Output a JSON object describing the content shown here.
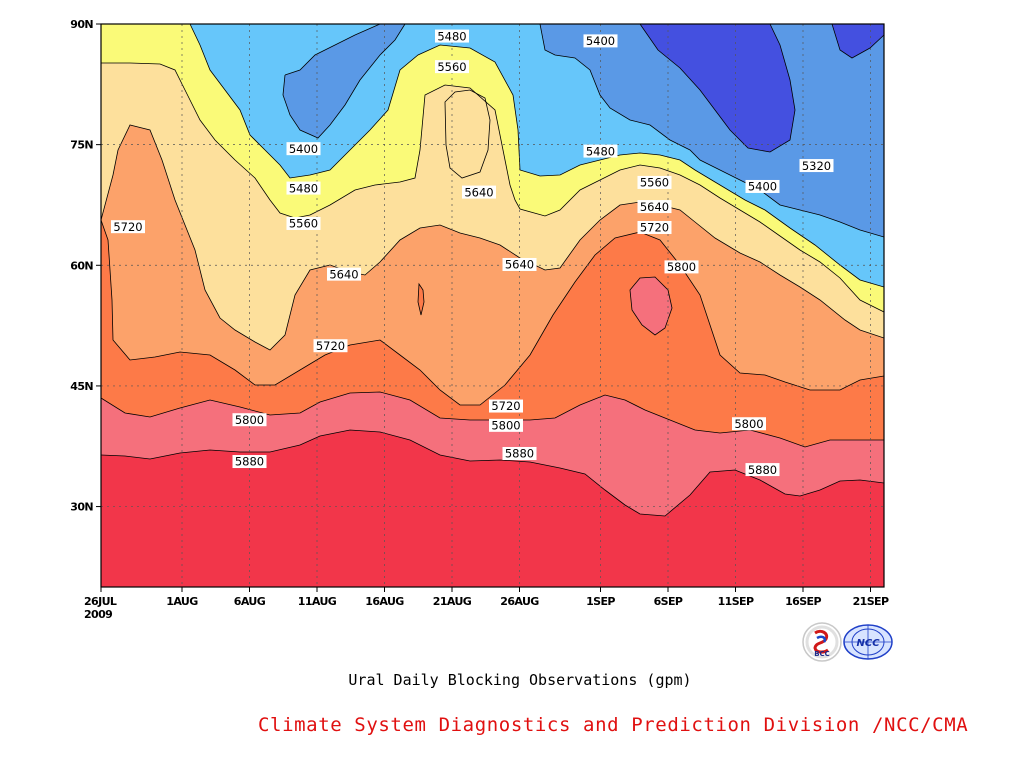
{
  "chart_data": {
    "type": "contour",
    "title": "Ural Daily Blocking Observations (gpm)",
    "x_ticks": [
      "26JUL 2009",
      "1AUG",
      "6AUG",
      "11AUG",
      "16AUG",
      "21AUG",
      "26AUG",
      "1SEP",
      "6SEP",
      "11SEP",
      "16SEP",
      "21SEP"
    ],
    "x_range": [
      "2009-07-26",
      "2009-09-22"
    ],
    "y_ticks": [
      "30N",
      "45N",
      "60N",
      "75N",
      "90N"
    ],
    "y_range": [
      20,
      90
    ],
    "grid": "dotted",
    "contour_levels": [
      5320,
      5400,
      5480,
      5560,
      5640,
      5720,
      5800,
      5880
    ],
    "contour_labels": [
      {
        "value": "5480",
        "date": "2009-08-21",
        "lat": 88.5
      },
      {
        "value": "5560",
        "date": "2009-08-21",
        "lat": 84.7
      },
      {
        "value": "5400",
        "date": "2009-09-01",
        "lat": 87.9
      },
      {
        "value": "5400",
        "date": "2009-08-10",
        "lat": 74.5
      },
      {
        "value": "5480",
        "date": "2009-08-10",
        "lat": 69.6
      },
      {
        "value": "5560",
        "date": "2009-08-10",
        "lat": 65.2
      },
      {
        "value": "5640",
        "date": "2009-08-23",
        "lat": 69.1
      },
      {
        "value": "5480",
        "date": "2009-09-01",
        "lat": 74.2
      },
      {
        "value": "5320",
        "date": "2009-09-17",
        "lat": 72.4
      },
      {
        "value": "5400",
        "date": "2009-09-13",
        "lat": 69.8
      },
      {
        "value": "5560",
        "date": "2009-09-05",
        "lat": 70.3
      },
      {
        "value": "5640",
        "date": "2009-09-05",
        "lat": 67.3
      },
      {
        "value": "5720",
        "date": "2009-09-05",
        "lat": 64.7
      },
      {
        "value": "5800",
        "date": "2009-09-07",
        "lat": 59.8
      },
      {
        "value": "5720",
        "date": "2009-07-28",
        "lat": 64.8
      },
      {
        "value": "5640",
        "date": "2009-08-13",
        "lat": 58.9
      },
      {
        "value": "5640",
        "date": "2009-08-26",
        "lat": 60.1
      },
      {
        "value": "5720",
        "date": "2009-08-12",
        "lat": 50.0
      },
      {
        "value": "5720",
        "date": "2009-08-25",
        "lat": 42.5
      },
      {
        "value": "5800",
        "date": "2009-08-06",
        "lat": 40.8
      },
      {
        "value": "5800",
        "date": "2009-08-25",
        "lat": 40.1
      },
      {
        "value": "5800",
        "date": "2009-09-12",
        "lat": 40.3
      },
      {
        "value": "5880",
        "date": "2009-08-06",
        "lat": 35.6
      },
      {
        "value": "5880",
        "date": "2009-08-26",
        "lat": 36.6
      },
      {
        "value": "5880",
        "date": "2009-09-13",
        "lat": 34.6
      }
    ],
    "colors": {
      "above_5880": "#f2364a",
      "5800_5880": "#f5707c",
      "5720_5800": "#fd7a48",
      "5640_5720": "#fca26a",
      "5560_5640": "#fde09c",
      "5480_5560": "#fafa78",
      "5400_5480": "#66c6fa",
      "5320_5400": "#5a99e6",
      "below_5320": "#4450e0"
    }
  },
  "caption": "Ural Daily Blocking Observations (gpm)",
  "credit": "Climate System Diagnostics and Prediction Division /NCC/CMA",
  "logos": [
    "BCC",
    "NCC"
  ]
}
